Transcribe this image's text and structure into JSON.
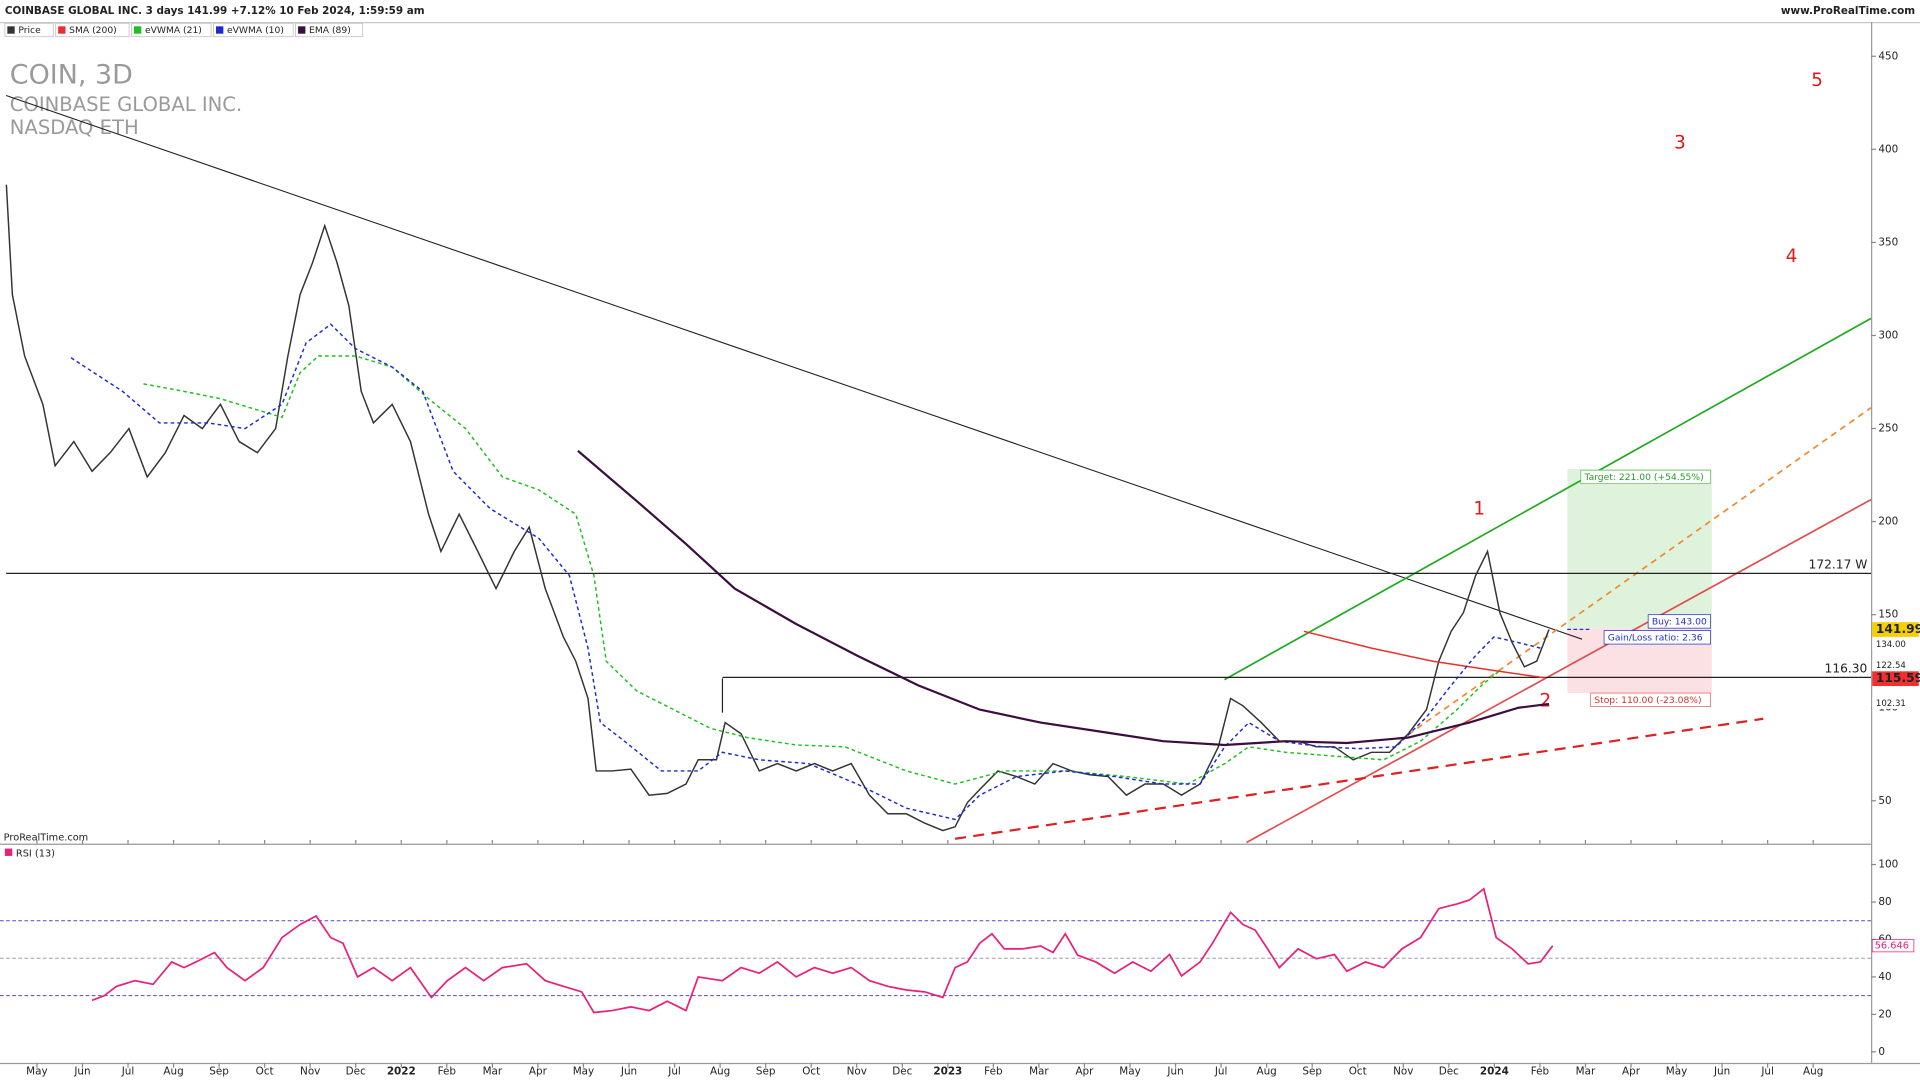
{
  "header": {
    "title": "COINBASE GLOBAL INC. 3 days 141.99 +7.12% 10 Feb 2024, 1:59:59 am",
    "site": "www.ProRealTime.com"
  },
  "chart_data": [
    {
      "type": "line",
      "watermark": [
        "COIN, 3D",
        "COINBASE GLOBAL INC.",
        "NASDAQ ETH"
      ],
      "credit": "ProRealTime.com",
      "xlim": [
        -0.73,
        40.27
      ],
      "ylim": [
        27.6,
        468.4
      ],
      "xticks": [
        {
          "value": 0,
          "label": "May"
        },
        {
          "value": 1,
          "label": "Jun"
        },
        {
          "value": 2,
          "label": "Jul"
        },
        {
          "value": 3,
          "label": "Aug"
        },
        {
          "value": 4,
          "label": "Sep"
        },
        {
          "value": 5,
          "label": "Oct"
        },
        {
          "value": 6,
          "label": "Nov"
        },
        {
          "value": 7,
          "label": "Dec"
        },
        {
          "value": 8,
          "label": "2022"
        },
        {
          "value": 9,
          "label": "Feb"
        },
        {
          "value": 10,
          "label": "Mar"
        },
        {
          "value": 11,
          "label": "Apr"
        },
        {
          "value": 12,
          "label": "May"
        },
        {
          "value": 13,
          "label": "Jun"
        },
        {
          "value": 14,
          "label": "Jul"
        },
        {
          "value": 15,
          "label": "Aug"
        },
        {
          "value": 16,
          "label": "Sep"
        },
        {
          "value": 17,
          "label": "Oct"
        },
        {
          "value": 18,
          "label": "Nov"
        },
        {
          "value": 19,
          "label": "Dec"
        },
        {
          "value": 20,
          "label": "2023"
        },
        {
          "value": 21,
          "label": "Feb"
        },
        {
          "value": 22,
          "label": "Mar"
        },
        {
          "value": 23,
          "label": "Apr"
        },
        {
          "value": 24,
          "label": "May"
        },
        {
          "value": 25,
          "label": "Jun"
        },
        {
          "value": 26,
          "label": "Jul"
        },
        {
          "value": 27,
          "label": "Aug"
        },
        {
          "value": 28,
          "label": "Sep"
        },
        {
          "value": 29,
          "label": "Oct"
        },
        {
          "value": 30,
          "label": "Nov"
        },
        {
          "value": 31,
          "label": "Dec"
        },
        {
          "value": 32,
          "label": "2024"
        },
        {
          "value": 33,
          "label": "Feb"
        },
        {
          "value": 34,
          "label": "Mar"
        },
        {
          "value": 35,
          "label": "Apr"
        },
        {
          "value": 36,
          "label": "May"
        },
        {
          "value": 37,
          "label": "Jun"
        },
        {
          "value": 38,
          "label": "Jul"
        },
        {
          "value": 39,
          "label": "Aug"
        }
      ],
      "yticks": [
        50,
        100,
        150,
        200,
        250,
        300,
        350,
        400,
        450
      ],
      "levels": [
        {
          "value": 172.17,
          "label": "172.17 W"
        },
        {
          "value": 116.3,
          "label": "116.30"
        }
      ],
      "price_markers": [
        {
          "value": 141.99,
          "label": "141.99",
          "color": "#f5d000"
        },
        {
          "value": 134,
          "label": "134.00",
          "color": "#ffffff"
        },
        {
          "value": 122.54,
          "label": "122.54",
          "color": "#ffffff"
        },
        {
          "value": 115.59,
          "label": "115.59",
          "color": "#f03030"
        },
        {
          "value": 102.31,
          "label": "102.31",
          "color": "#ffffff"
        }
      ],
      "trade": {
        "target": "Target: 221.00 (+54.55%)",
        "buy": "Buy: 143.00",
        "ratio": "Gain/Loss ratio: 2.36",
        "stop": "Stop: 110.00 (-23.08%)"
      },
      "wave_labels": [
        "1",
        "2",
        "3",
        "4",
        "5"
      ],
      "series": [
        {
          "name": "Price",
          "color": "#333333",
          "style": "solid",
          "x": [
            -0.67,
            -0.54,
            -0.27,
            0.13,
            0.4,
            0.81,
            1.21,
            1.61,
            2.02,
            2.42,
            2.82,
            3.23,
            3.63,
            4.03,
            4.44,
            4.84,
            5.24,
            5.51,
            5.78,
            6.05,
            6.32,
            6.59,
            6.85,
            7.12,
            7.39,
            7.8,
            8.2,
            8.6,
            8.87,
            9.27,
            9.68,
            10.08,
            10.48,
            10.81,
            11.16,
            11.56,
            11.83,
            12.1,
            12.28,
            12.63,
            13.04,
            13.44,
            13.84,
            14.25,
            14.52,
            14.92,
            15.11,
            15.46,
            15.86,
            16.26,
            16.67,
            17.07,
            17.47,
            17.88,
            18.28,
            18.68,
            19.09,
            19.49,
            19.89,
            20.16,
            20.43,
            20.7,
            21.1,
            21.51,
            21.91,
            22.31,
            22.72,
            23.12,
            23.52,
            23.92,
            24.33,
            24.73,
            25.13,
            25.54,
            25.94,
            26.21,
            26.48,
            26.88,
            27.28,
            27.69,
            28.09,
            28.49,
            28.9,
            29.3,
            29.7,
            30.11,
            30.51,
            30.78,
            31.05,
            31.32,
            31.59,
            31.85,
            32.12,
            32.39,
            32.66,
            32.93,
            33.2
          ],
          "values": [
            381,
            322,
            289,
            263,
            230,
            243,
            227,
            237,
            250,
            224,
            237,
            257,
            250,
            263,
            243,
            237,
            250,
            289,
            322,
            339,
            359,
            339,
            316,
            270,
            253,
            263,
            243,
            204,
            184,
            204,
            184,
            164,
            184,
            197,
            164,
            138,
            125,
            105,
            66,
            66,
            67,
            53,
            54,
            59,
            72,
            72,
            92,
            86,
            66,
            70,
            66,
            70,
            66,
            70,
            53,
            43,
            43,
            38,
            34,
            36,
            49,
            56,
            66,
            63,
            59,
            70,
            66,
            64,
            63,
            53,
            59,
            59,
            53,
            59,
            79,
            105,
            101,
            92,
            82,
            82,
            79,
            79,
            72,
            76,
            76,
            86,
            99,
            125,
            141,
            151,
            171,
            184,
            151,
            135,
            122,
            125,
            141.99
          ]
        },
        {
          "name": "SMA (200)",
          "color": "#e8302a",
          "style": "solid",
          "x": [
            27.82,
            29.3,
            30.65,
            31.99,
            33.12
          ],
          "values": [
            141,
            132,
            125,
            120,
            116
          ]
        },
        {
          "name": "eVWMA (21)",
          "color": "#1fbf1f",
          "style": "dashed",
          "x": [
            2.34,
            3.23,
            4.03,
            4.84,
            5.38,
            5.78,
            6.18,
            6.99,
            7.8,
            8.6,
            9.41,
            10.22,
            11.02,
            11.83,
            12.23,
            12.5,
            13.17,
            13.98,
            14.78,
            15.59,
            16.67,
            17.74,
            19.09,
            20.16,
            21.24,
            22.58,
            23.92,
            25.27,
            26.08,
            26.61,
            27.42,
            28.49,
            29.57,
            30.38,
            31.18,
            31.72,
            32.12
          ],
          "values": [
            274,
            270,
            266,
            260,
            256,
            280,
            289,
            289,
            283,
            266,
            250,
            224,
            217,
            204,
            171,
            125,
            109,
            99,
            89,
            84,
            80,
            79,
            66,
            59,
            66,
            66,
            63,
            59,
            70,
            79,
            76,
            74,
            72,
            82,
            99,
            112,
            120
          ]
        },
        {
          "name": "eVWMA (10)",
          "color": "#1c2bd0",
          "style": "dashed",
          "x": [
            0.75,
            1.88,
            2.69,
            3.76,
            4.57,
            5.38,
            5.91,
            6.45,
            6.99,
            7.8,
            8.47,
            9.14,
            9.95,
            11.02,
            11.69,
            12.1,
            12.37,
            12.9,
            13.71,
            14.52,
            15.05,
            15.86,
            16.94,
            18.01,
            19.09,
            20.16,
            20.7,
            21.51,
            22.58,
            23.66,
            24.73,
            25.54,
            26.08,
            26.61,
            27.28,
            28.23,
            29.03,
            29.84,
            30.51,
            31.05,
            31.59,
            31.99,
            32.53,
            33.01
          ],
          "values": [
            288,
            270,
            253,
            253,
            250,
            263,
            296,
            306,
            293,
            283,
            270,
            227,
            207,
            191,
            171,
            132,
            92,
            82,
            66,
            66,
            76,
            72,
            70,
            59,
            46,
            40,
            53,
            63,
            66,
            63,
            59,
            59,
            79,
            92,
            82,
            79,
            78,
            79,
            95,
            112,
            128,
            138,
            135,
            132
          ]
        },
        {
          "name": "EMA (89)",
          "color": "#3a0f3f",
          "style": "solid",
          "x": [
            11.88,
            13.17,
            14.25,
            15.32,
            16.67,
            18.01,
            19.35,
            20.7,
            22.04,
            23.39,
            24.73,
            26.08,
            27.42,
            28.76,
            30.11,
            31.45,
            32.53,
            33.2
          ],
          "values": [
            238,
            211,
            188,
            164,
            145,
            128,
            112,
            99,
            92,
            87,
            82,
            80,
            82,
            81,
            84,
            92,
            100,
            102
          ]
        }
      ]
    },
    {
      "type": "line",
      "ylim": [
        -5.9,
        110.5
      ],
      "yticks": [
        0,
        20,
        40,
        60,
        80,
        100
      ],
      "levels": [
        {
          "value": 70,
          "color": "#4a4ad0"
        },
        {
          "value": 50,
          "color": "#8a8aa8"
        },
        {
          "value": 30,
          "color": "#4a4ad0"
        }
      ],
      "last_label": "56.646",
      "series": [
        {
          "name": "RSI (13)",
          "color": "#e8207a",
          "x": [
            1.21,
            1.48,
            1.75,
            2.15,
            2.55,
            2.96,
            3.23,
            3.49,
            3.9,
            4.17,
            4.57,
            4.97,
            5.38,
            5.78,
            6.13,
            6.45,
            6.72,
            7.04,
            7.39,
            7.8,
            8.2,
            8.66,
            9.01,
            9.41,
            9.81,
            10.22,
            10.75,
            11.16,
            11.56,
            11.96,
            12.23,
            12.63,
            13.04,
            13.44,
            13.84,
            14.25,
            14.52,
            15.05,
            15.46,
            15.86,
            16.26,
            16.67,
            17.07,
            17.47,
            17.88,
            18.28,
            18.68,
            19.09,
            19.49,
            19.89,
            20.16,
            20.43,
            20.7,
            20.97,
            21.24,
            21.64,
            22.04,
            22.31,
            22.58,
            22.85,
            23.25,
            23.66,
            24.06,
            24.46,
            24.87,
            25.13,
            25.54,
            25.81,
            26.21,
            26.48,
            26.75,
            27.02,
            27.28,
            27.69,
            28.09,
            28.49,
            28.76,
            29.17,
            29.57,
            29.97,
            30.38,
            30.78,
            31.18,
            31.45,
            31.77,
            32.04,
            32.39,
            32.74,
            33.01,
            33.28
          ],
          "values": [
            27.5,
            30,
            35,
            38,
            36,
            48,
            45,
            48,
            53,
            45,
            38,
            45,
            61,
            68,
            72.5,
            61,
            58,
            40,
            45,
            38,
            45,
            29,
            38,
            45,
            38,
            45,
            47,
            38,
            35,
            32,
            21,
            22,
            24,
            22,
            27,
            22,
            40,
            38,
            45,
            42,
            48,
            40,
            45,
            42,
            45,
            38,
            35,
            33,
            32,
            29,
            45,
            48,
            58,
            63,
            55,
            55,
            56.5,
            53,
            63,
            51.6,
            48,
            42,
            48,
            43,
            52,
            40.5,
            48,
            58,
            74.5,
            68,
            65,
            55,
            45,
            55,
            49.7,
            52,
            43,
            48,
            45,
            55,
            61,
            76.5,
            79,
            81,
            87,
            61,
            55,
            47,
            48,
            56.646
          ]
        }
      ]
    }
  ]
}
